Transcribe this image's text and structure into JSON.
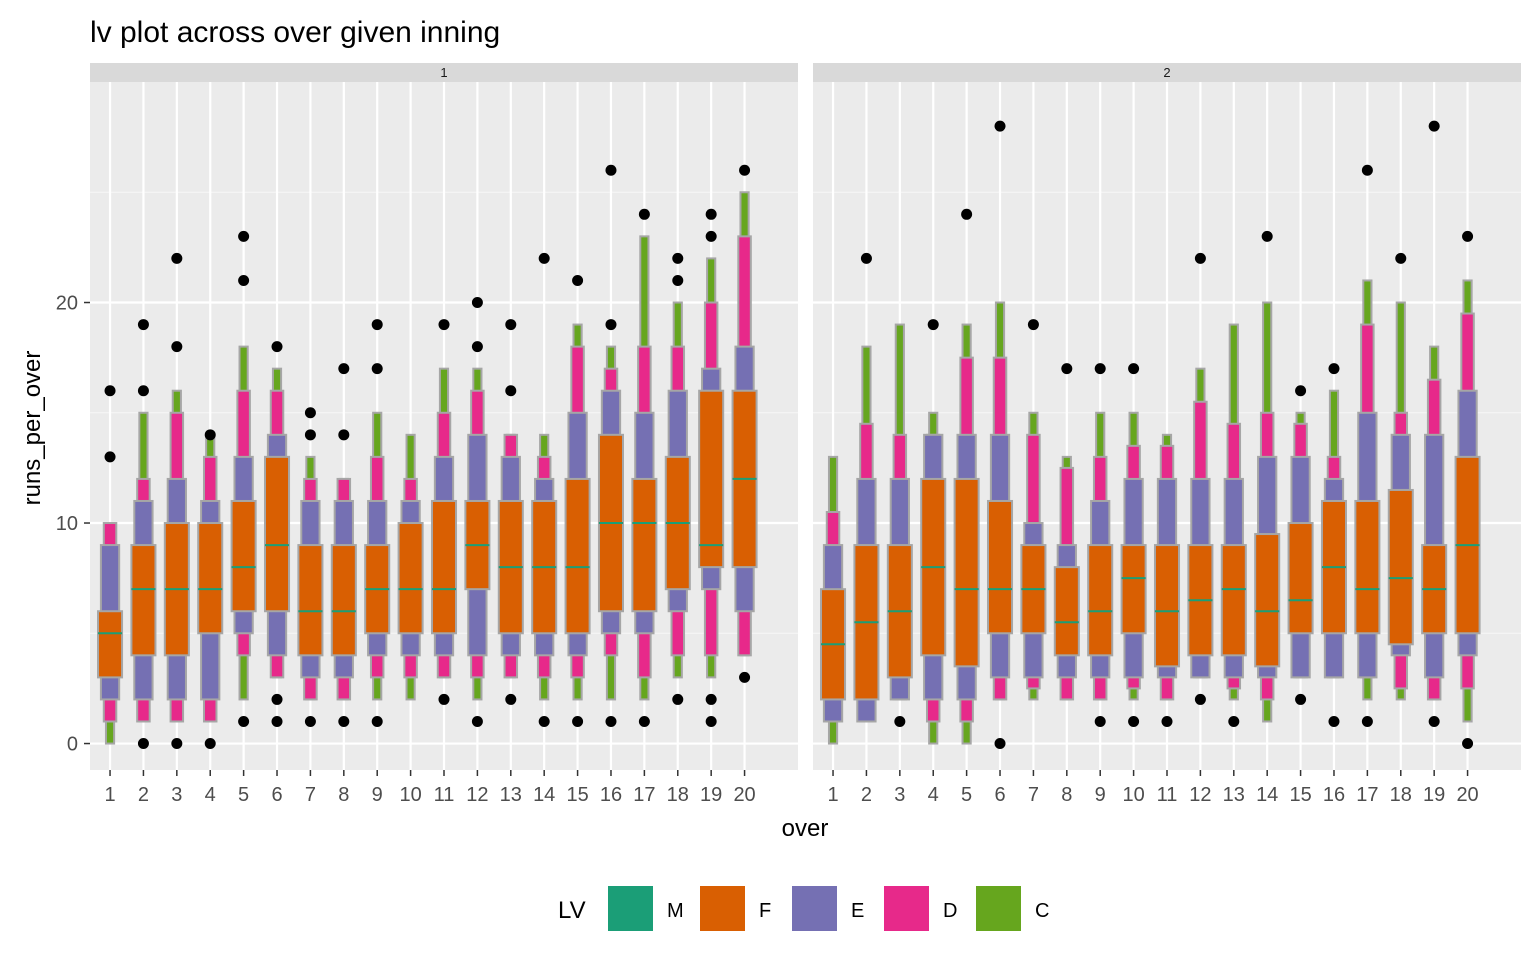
{
  "chart_data": {
    "type": "lvplot",
    "title": "lv plot across over given inning",
    "xlabel": "over",
    "ylabel": "runs_per_over",
    "ylim": [
      -1.2,
      30
    ],
    "yticks": [
      0,
      10,
      20
    ],
    "categories": [
      "1",
      "2",
      "3",
      "4",
      "5",
      "6",
      "7",
      "8",
      "9",
      "10",
      "11",
      "12",
      "13",
      "14",
      "15",
      "16",
      "17",
      "18",
      "19",
      "20"
    ],
    "colors": {
      "M": "#1B9E77",
      "F": "#D95F02",
      "E": "#7570B3",
      "D": "#E7298A",
      "C": "#66A61E"
    },
    "legend": {
      "title": "LV",
      "position": "bottom",
      "items": [
        {
          "key": "M",
          "label": "M"
        },
        {
          "key": "F",
          "label": "F"
        },
        {
          "key": "E",
          "label": "E"
        },
        {
          "key": "D",
          "label": "D"
        },
        {
          "key": "C",
          "label": "C"
        }
      ]
    },
    "panels": [
      {
        "strip": "1",
        "boxes": [
          {
            "over": 1,
            "median": 5,
            "F": [
              3,
              6
            ],
            "E": [
              2,
              9
            ],
            "D": [
              1,
              10
            ],
            "C": [
              0,
              1
            ],
            "outliers": [
              13,
              16
            ]
          },
          {
            "over": 2,
            "median": 7,
            "F": [
              4,
              9
            ],
            "E": [
              2,
              11
            ],
            "D": [
              1,
              12
            ],
            "C": [
              1,
              15
            ],
            "outliers": [
              0,
              16,
              19
            ]
          },
          {
            "over": 3,
            "median": 7,
            "F": [
              4,
              10
            ],
            "E": [
              2,
              12
            ],
            "D": [
              1,
              15
            ],
            "C": [
              1,
              16
            ],
            "outliers": [
              0,
              18,
              22
            ]
          },
          {
            "over": 4,
            "median": 7,
            "F": [
              5,
              10
            ],
            "E": [
              2,
              11
            ],
            "D": [
              1,
              13
            ],
            "C": [
              1,
              14
            ],
            "outliers": [
              0,
              14
            ]
          },
          {
            "over": 5,
            "median": 8,
            "F": [
              6,
              11
            ],
            "E": [
              5,
              13
            ],
            "D": [
              4,
              16
            ],
            "C": [
              2,
              18
            ],
            "outliers": [
              1,
              21,
              23
            ]
          },
          {
            "over": 6,
            "median": 9,
            "F": [
              6,
              13
            ],
            "E": [
              4,
              14
            ],
            "D": [
              3,
              16
            ],
            "C": [
              3,
              17
            ],
            "outliers": [
              1,
              2,
              18
            ]
          },
          {
            "over": 7,
            "median": 6,
            "F": [
              4,
              9
            ],
            "E": [
              3,
              11
            ],
            "D": [
              2,
              12
            ],
            "C": [
              2,
              13
            ],
            "outliers": [
              1,
              14,
              15
            ]
          },
          {
            "over": 8,
            "median": 6,
            "F": [
              4,
              9
            ],
            "E": [
              3,
              11
            ],
            "D": [
              2,
              12
            ],
            "C": [
              2,
              12
            ],
            "outliers": [
              1,
              14,
              17
            ]
          },
          {
            "over": 9,
            "median": 7,
            "F": [
              5,
              9
            ],
            "E": [
              4,
              11
            ],
            "D": [
              3,
              13
            ],
            "C": [
              2,
              15
            ],
            "outliers": [
              1,
              17,
              19
            ]
          },
          {
            "over": 10,
            "median": 7,
            "F": [
              5,
              10
            ],
            "E": [
              4,
              11
            ],
            "D": [
              3,
              12
            ],
            "C": [
              2,
              14
            ],
            "outliers": []
          },
          {
            "over": 11,
            "median": 7,
            "F": [
              5,
              11
            ],
            "E": [
              4,
              13
            ],
            "D": [
              3,
              15
            ],
            "C": [
              3,
              17
            ],
            "outliers": [
              2,
              19
            ]
          },
          {
            "over": 12,
            "median": 9,
            "F": [
              7,
              11
            ],
            "E": [
              4,
              14
            ],
            "D": [
              3,
              16
            ],
            "C": [
              2,
              17
            ],
            "outliers": [
              1,
              18,
              20
            ]
          },
          {
            "over": 13,
            "median": 8,
            "F": [
              5,
              11
            ],
            "E": [
              4,
              13
            ],
            "D": [
              3,
              14
            ],
            "C": [
              3,
              14
            ],
            "outliers": [
              2,
              16,
              19
            ]
          },
          {
            "over": 14,
            "median": 8,
            "F": [
              5,
              11
            ],
            "E": [
              4,
              12
            ],
            "D": [
              3,
              13
            ],
            "C": [
              2,
              14
            ],
            "outliers": [
              1,
              22
            ]
          },
          {
            "over": 15,
            "median": 8,
            "F": [
              5,
              12
            ],
            "E": [
              4,
              15
            ],
            "D": [
              3,
              18
            ],
            "C": [
              2,
              19
            ],
            "outliers": [
              1,
              21
            ]
          },
          {
            "over": 16,
            "median": 10,
            "F": [
              6,
              14
            ],
            "E": [
              5,
              16
            ],
            "D": [
              4,
              17
            ],
            "C": [
              2,
              18
            ],
            "outliers": [
              1,
              19,
              26
            ]
          },
          {
            "over": 17,
            "median": 10,
            "F": [
              6,
              12
            ],
            "E": [
              5,
              15
            ],
            "D": [
              3,
              18
            ],
            "C": [
              2,
              23
            ],
            "outliers": [
              1,
              24
            ]
          },
          {
            "over": 18,
            "median": 10,
            "F": [
              7,
              13
            ],
            "E": [
              6,
              16
            ],
            "D": [
              4,
              18
            ],
            "C": [
              3,
              20
            ],
            "outliers": [
              2,
              21,
              22
            ]
          },
          {
            "over": 19,
            "median": 9,
            "F": [
              8,
              16
            ],
            "E": [
              7,
              17
            ],
            "D": [
              4,
              20
            ],
            "C": [
              3,
              22
            ],
            "outliers": [
              1,
              2,
              23,
              24
            ]
          },
          {
            "over": 20,
            "median": 12,
            "F": [
              8,
              16
            ],
            "E": [
              6,
              18
            ],
            "D": [
              4,
              23
            ],
            "C": [
              4,
              25
            ],
            "outliers": [
              3,
              26
            ]
          }
        ]
      },
      {
        "strip": "2",
        "boxes": [
          {
            "over": 1,
            "median": 4.5,
            "F": [
              2,
              7
            ],
            "E": [
              1,
              9
            ],
            "D": [
              1,
              10.5
            ],
            "C": [
              0,
              13
            ],
            "outliers": []
          },
          {
            "over": 2,
            "median": 5.5,
            "F": [
              2,
              9
            ],
            "E": [
              1,
              12
            ],
            "D": [
              1,
              14.5
            ],
            "C": [
              1,
              18
            ],
            "outliers": [
              22
            ]
          },
          {
            "over": 3,
            "median": 6,
            "F": [
              3,
              9
            ],
            "E": [
              2,
              12
            ],
            "D": [
              2,
              14
            ],
            "C": [
              2,
              19
            ],
            "outliers": [
              1
            ]
          },
          {
            "over": 4,
            "median": 8,
            "F": [
              4,
              12
            ],
            "E": [
              2,
              14
            ],
            "D": [
              1,
              14
            ],
            "C": [
              0,
              15
            ],
            "outliers": [
              19
            ]
          },
          {
            "over": 5,
            "median": 7,
            "F": [
              3.5,
              12
            ],
            "E": [
              2,
              14
            ],
            "D": [
              1,
              17.5
            ],
            "C": [
              0,
              19
            ],
            "outliers": [
              24
            ]
          },
          {
            "over": 6,
            "median": 7,
            "F": [
              5,
              11
            ],
            "E": [
              3,
              14
            ],
            "D": [
              2,
              17.5
            ],
            "C": [
              2,
              20
            ],
            "outliers": [
              0,
              28
            ]
          },
          {
            "over": 7,
            "median": 7,
            "F": [
              5,
              9
            ],
            "E": [
              3,
              10
            ],
            "D": [
              2.5,
              14
            ],
            "C": [
              2,
              15
            ],
            "outliers": [
              19
            ]
          },
          {
            "over": 8,
            "median": 5.5,
            "F": [
              4,
              8
            ],
            "E": [
              3,
              9
            ],
            "D": [
              2,
              12.5
            ],
            "C": [
              2,
              13
            ],
            "outliers": [
              17
            ]
          },
          {
            "over": 9,
            "median": 6,
            "F": [
              4,
              9
            ],
            "E": [
              3,
              11
            ],
            "D": [
              2,
              13
            ],
            "C": [
              2,
              15
            ],
            "outliers": [
              1,
              17
            ]
          },
          {
            "over": 10,
            "median": 7.5,
            "F": [
              5,
              9
            ],
            "E": [
              3,
              12
            ],
            "D": [
              2.5,
              13.5
            ],
            "C": [
              2,
              15
            ],
            "outliers": [
              1,
              17
            ]
          },
          {
            "over": 11,
            "median": 6,
            "F": [
              3.5,
              9
            ],
            "E": [
              3,
              12
            ],
            "D": [
              2,
              13.5
            ],
            "C": [
              2,
              14
            ],
            "outliers": [
              1
            ]
          },
          {
            "over": 12,
            "median": 6.5,
            "F": [
              4,
              9
            ],
            "E": [
              3,
              12
            ],
            "D": [
              3,
              15.5
            ],
            "C": [
              3,
              17
            ],
            "outliers": [
              2,
              22
            ]
          },
          {
            "over": 13,
            "median": 7,
            "F": [
              4,
              9
            ],
            "E": [
              3,
              12
            ],
            "D": [
              2.5,
              14.5
            ],
            "C": [
              2,
              19
            ],
            "outliers": [
              1
            ]
          },
          {
            "over": 14,
            "median": 6,
            "F": [
              3.5,
              9.5
            ],
            "E": [
              3,
              13
            ],
            "D": [
              2,
              15
            ],
            "C": [
              1,
              20
            ],
            "outliers": [
              23
            ]
          },
          {
            "over": 15,
            "median": 6.5,
            "F": [
              5,
              10
            ],
            "E": [
              3,
              13
            ],
            "D": [
              3,
              14.5
            ],
            "C": [
              3,
              15
            ],
            "outliers": [
              2,
              16
            ]
          },
          {
            "over": 16,
            "median": 8,
            "F": [
              5,
              11
            ],
            "E": [
              3,
              12
            ],
            "D": [
              3,
              13
            ],
            "C": [
              3,
              16
            ],
            "outliers": [
              1,
              17
            ]
          },
          {
            "over": 17,
            "median": 7,
            "F": [
              5,
              11
            ],
            "E": [
              3,
              15
            ],
            "D": [
              3,
              19
            ],
            "C": [
              2,
              21
            ],
            "outliers": [
              1,
              26
            ]
          },
          {
            "over": 18,
            "median": 7.5,
            "F": [
              4.5,
              11.5
            ],
            "E": [
              4,
              14
            ],
            "D": [
              2.5,
              15
            ],
            "C": [
              2,
              20
            ],
            "outliers": [
              22
            ]
          },
          {
            "over": 19,
            "median": 7,
            "F": [
              5,
              9
            ],
            "E": [
              3,
              14
            ],
            "D": [
              2,
              16.5
            ],
            "C": [
              2,
              18
            ],
            "outliers": [
              1,
              28
            ]
          },
          {
            "over": 20,
            "median": 9,
            "F": [
              5,
              13
            ],
            "E": [
              4,
              16
            ],
            "D": [
              2.5,
              19.5
            ],
            "C": [
              1,
              21
            ],
            "outliers": [
              0,
              23
            ]
          }
        ]
      }
    ]
  }
}
